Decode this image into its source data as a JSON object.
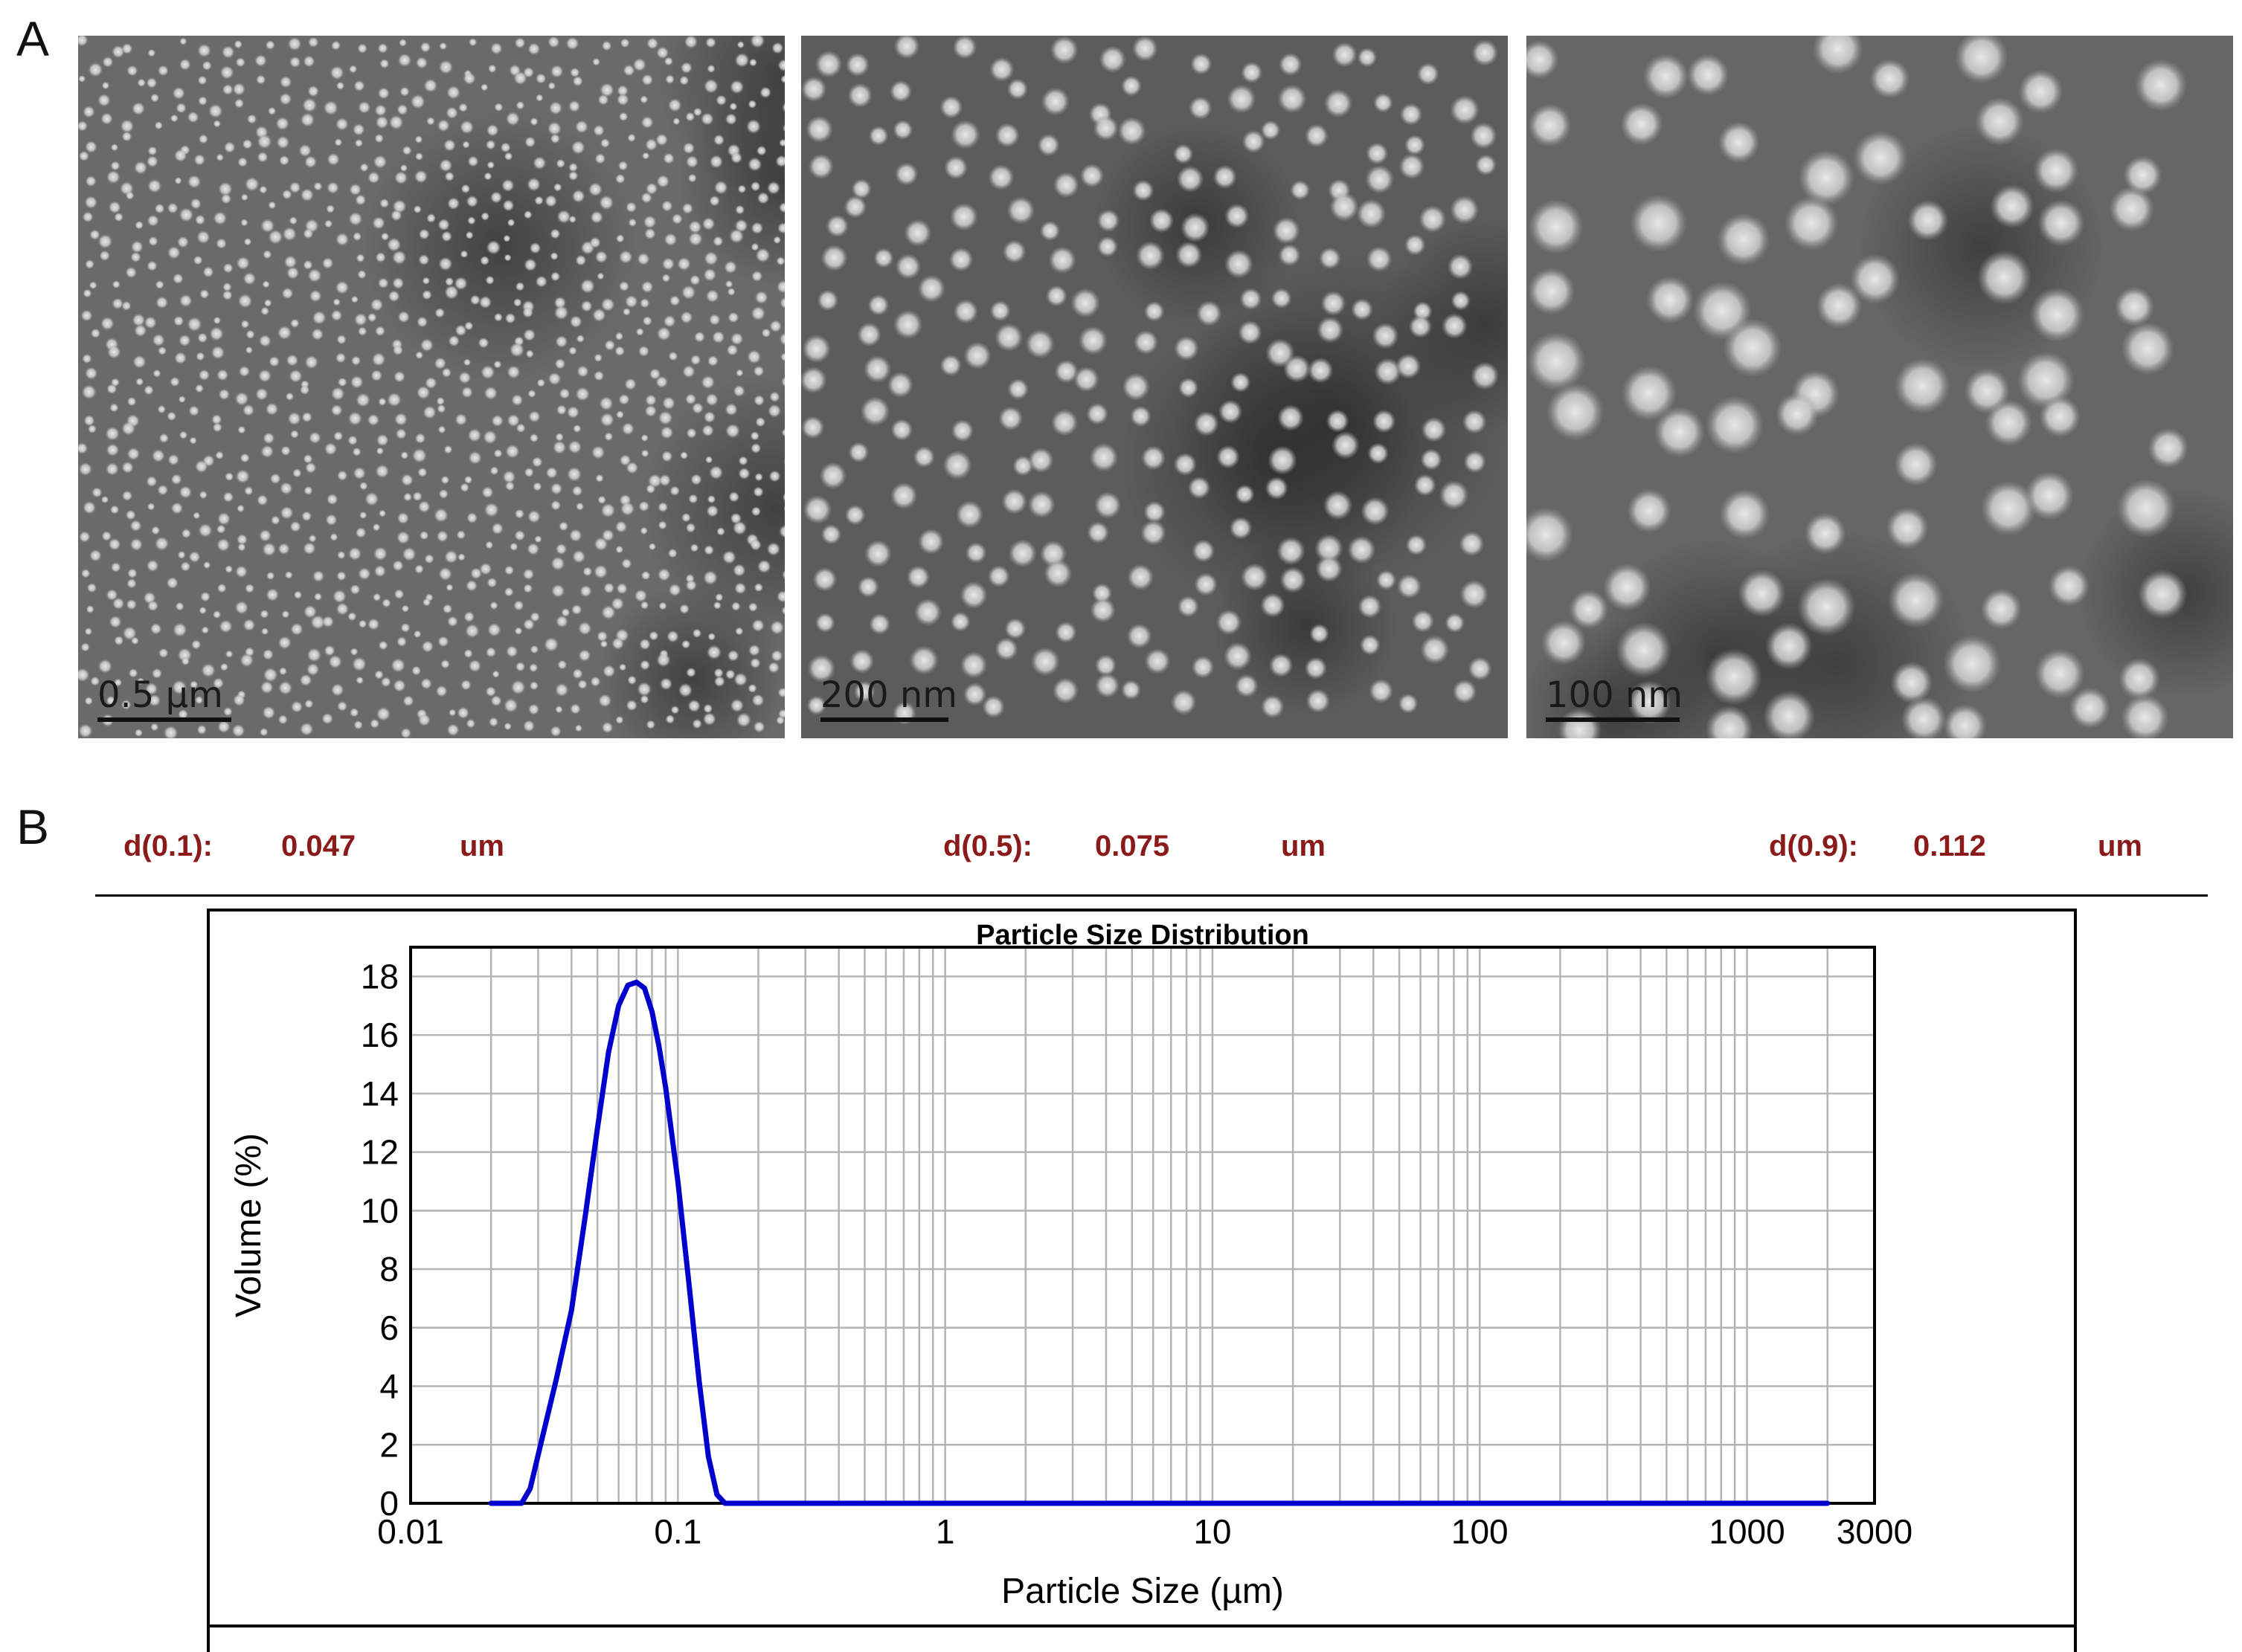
{
  "panel_a": {
    "letter": "A",
    "micrographs": [
      {
        "scale_label": "0.5 µm",
        "scale_fraction": 0.19
      },
      {
        "scale_label": "200 nm",
        "scale_fraction": 0.18
      },
      {
        "scale_label": "100 nm",
        "scale_fraction": 0.19
      }
    ]
  },
  "panel_b": {
    "letter": "B",
    "stats": [
      {
        "label": "d(0.1):",
        "value": "0.047",
        "unit": "um"
      },
      {
        "label": "d(0.5):",
        "value": "0.075",
        "unit": "um"
      },
      {
        "label": "d(0.9):",
        "value": "0.112",
        "unit": "um"
      }
    ]
  },
  "chart_data": {
    "type": "line",
    "title": "Particle Size Distribution",
    "xlabel": "Particle Size (µm)",
    "ylabel": "Volume (%)",
    "x_scale": "log",
    "xlim": [
      0.01,
      3000
    ],
    "ylim": [
      0,
      19
    ],
    "x_tick_values": [
      0.01,
      0.1,
      1,
      10,
      100,
      1000,
      3000
    ],
    "x_tick_labels": [
      "0.01",
      "0.1",
      "1",
      "10",
      "100",
      "1000",
      "3000"
    ],
    "y_tick_values": [
      0,
      2,
      4,
      6,
      8,
      10,
      12,
      14,
      16,
      18
    ],
    "y_tick_labels": [
      "0",
      "2",
      "4",
      "6",
      "8",
      "10",
      "12",
      "14",
      "16",
      "18"
    ],
    "grid": true,
    "series": [
      {
        "color": "#0000cc",
        "x": [
          0.02,
          0.026,
          0.028,
          0.031,
          0.035,
          0.04,
          0.045,
          0.05,
          0.055,
          0.06,
          0.065,
          0.07,
          0.075,
          0.08,
          0.085,
          0.09,
          0.1,
          0.11,
          0.12,
          0.13,
          0.14,
          0.15,
          0.2,
          1,
          10,
          100,
          1000,
          2000
        ],
        "y": [
          0,
          0,
          0.5,
          2.2,
          4.2,
          6.6,
          9.8,
          12.8,
          15.4,
          17.0,
          17.7,
          17.8,
          17.6,
          16.8,
          15.6,
          14.2,
          11.0,
          7.5,
          4.2,
          1.6,
          0.3,
          0,
          0,
          0,
          0,
          0,
          0,
          0
        ]
      }
    ]
  }
}
